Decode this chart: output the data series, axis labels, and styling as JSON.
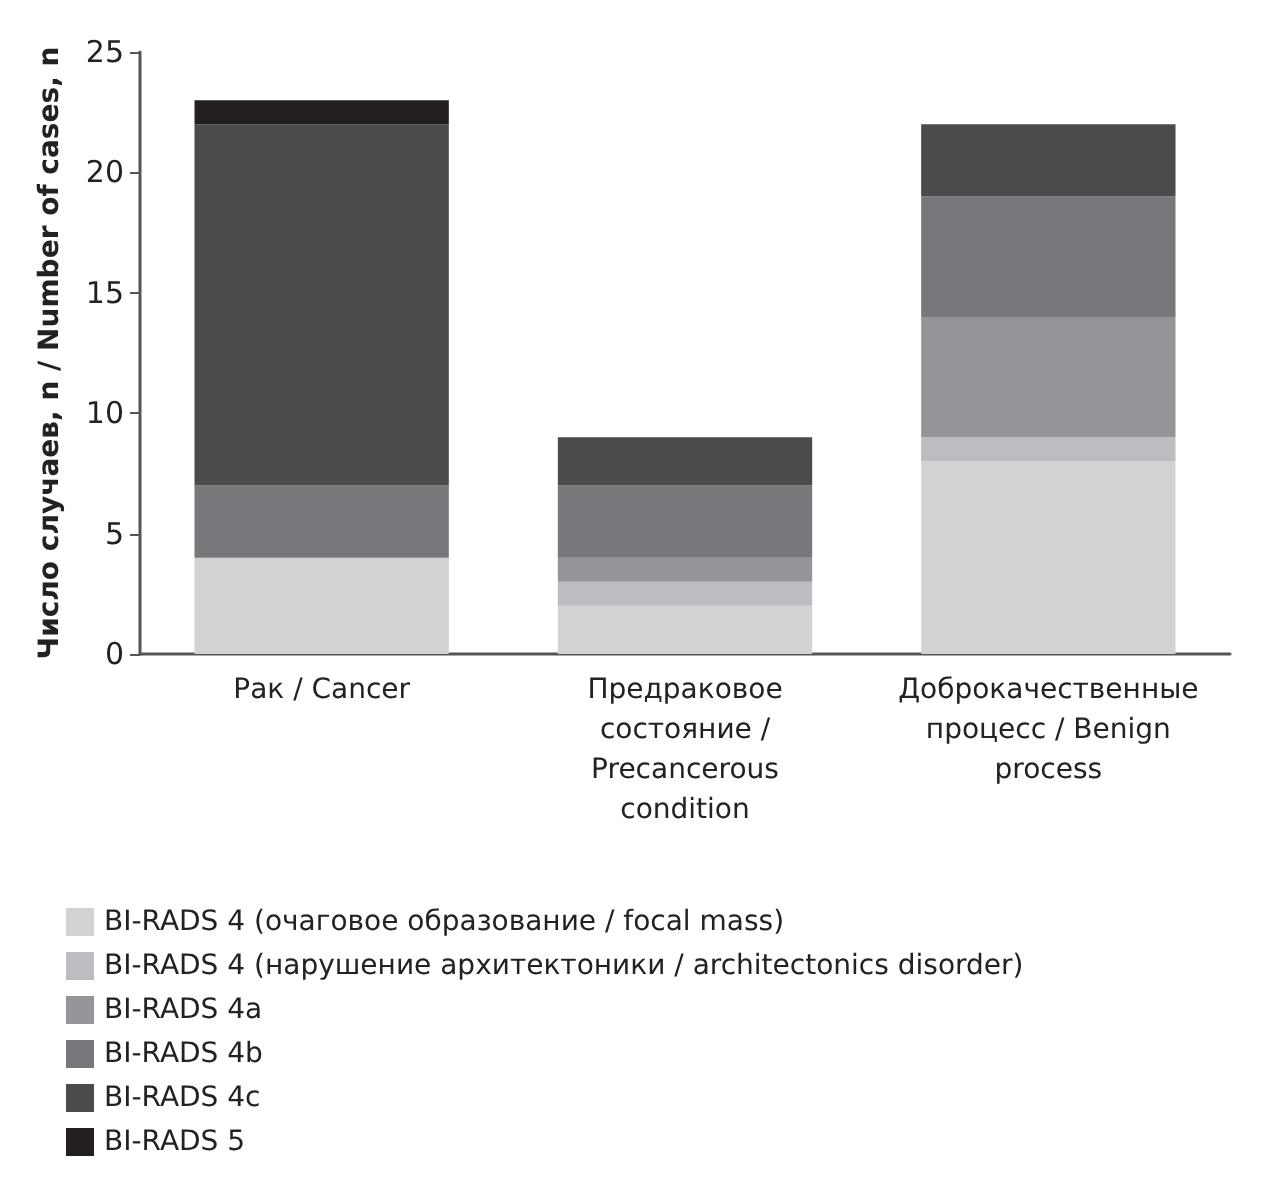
{
  "chart_data": {
    "type": "bar",
    "stacked": true,
    "ylabel": "Число случаев, n / Number of cases, n",
    "categories": [
      "Рак / Cancer",
      "Предраковое состояние / Precancerous condition",
      "Доброкачественные процесс / Benign process"
    ],
    "series": [
      {
        "name": "BI-RADS 4 (очаговое образование / focal mass)",
        "color": "#d1d2d4",
        "values": [
          4,
          2,
          8
        ]
      },
      {
        "name": "BI-RADS 4 (нарушение архитектоники / architectonics disorder)",
        "color": "#bcbdc0",
        "values": [
          0,
          1,
          1
        ]
      },
      {
        "name": "BI-RADS 4a",
        "color": "#939598",
        "values": [
          0,
          1,
          5
        ]
      },
      {
        "name": "BI-RADS 4b",
        "color": "#77787b",
        "values": [
          3,
          3,
          5
        ]
      },
      {
        "name": "BI-RADS 4c",
        "color": "#4a4b4d",
        "values": [
          15,
          2,
          3
        ]
      },
      {
        "name": "BI-RADS 5",
        "color": "#231f20",
        "values": [
          1,
          0,
          0
        ]
      }
    ],
    "ylim": [
      0,
      25
    ],
    "yticks": [
      0,
      5,
      10,
      15,
      20,
      25
    ],
    "grid": false,
    "legend": "bottom left"
  }
}
